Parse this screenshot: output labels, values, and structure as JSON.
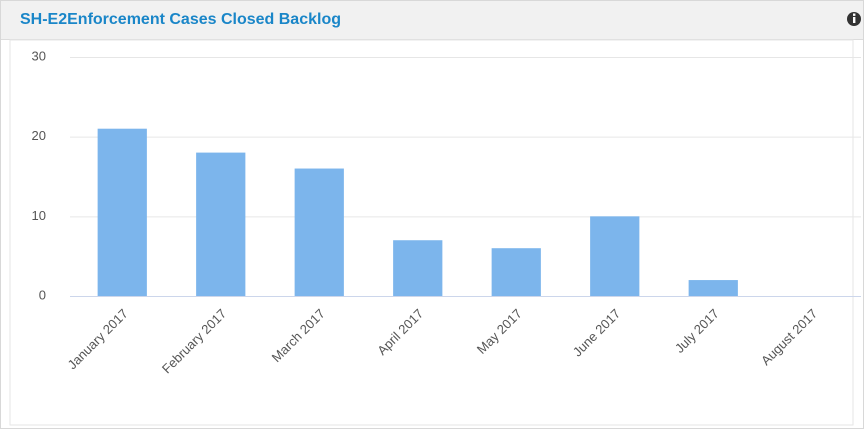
{
  "chart_data": {
    "type": "bar",
    "title": "SH-E2Enforcement Cases Closed Backlog",
    "categories": [
      "January 2017",
      "February 2017",
      "March 2017",
      "April 2017",
      "May 2017",
      "June 2017",
      "July 2017",
      "August 2017"
    ],
    "values": [
      21,
      18,
      16,
      7,
      6,
      10,
      2,
      0
    ],
    "color": "#7cb5ec",
    "ylim": [
      0,
      30
    ],
    "yticks": [
      0,
      10,
      20,
      30
    ],
    "grid": true
  }
}
